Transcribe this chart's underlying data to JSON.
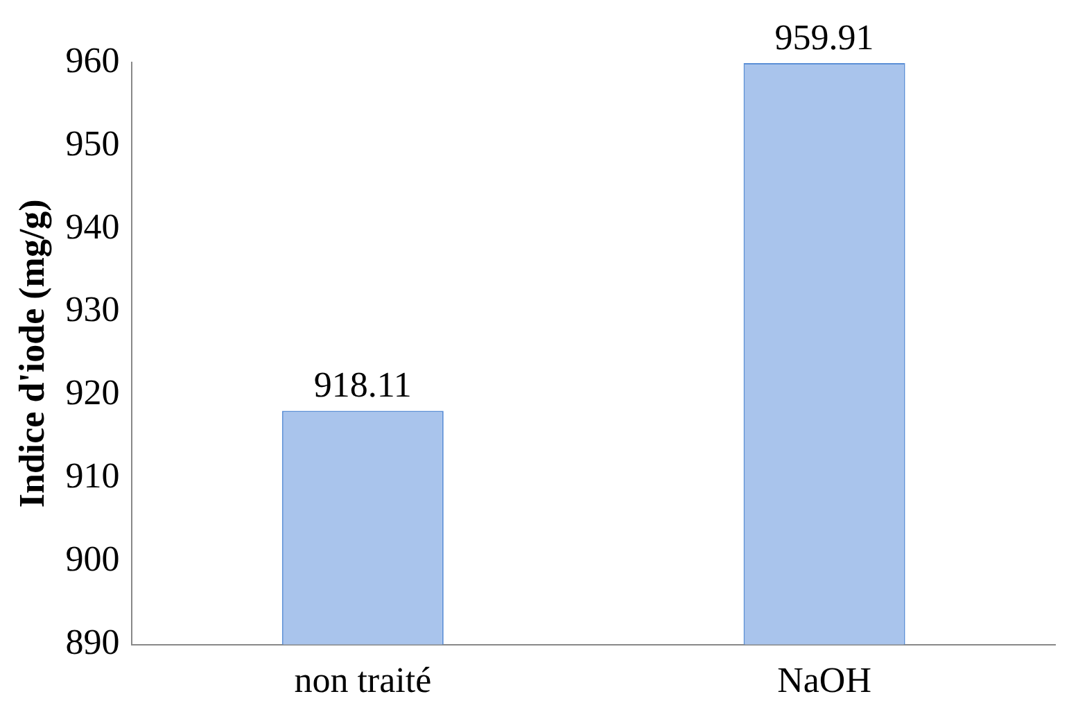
{
  "chart_data": {
    "type": "bar",
    "ylabel": "Indice d'iode (mg/g)",
    "categories": [
      "non traité",
      "NaOH"
    ],
    "values": [
      918.11,
      959.91
    ],
    "color": "#a9c4ec",
    "ylim": [
      890,
      960
    ],
    "yticks": [
      890,
      900,
      910,
      920,
      930,
      940,
      950,
      960
    ],
    "data_labels": true
  }
}
